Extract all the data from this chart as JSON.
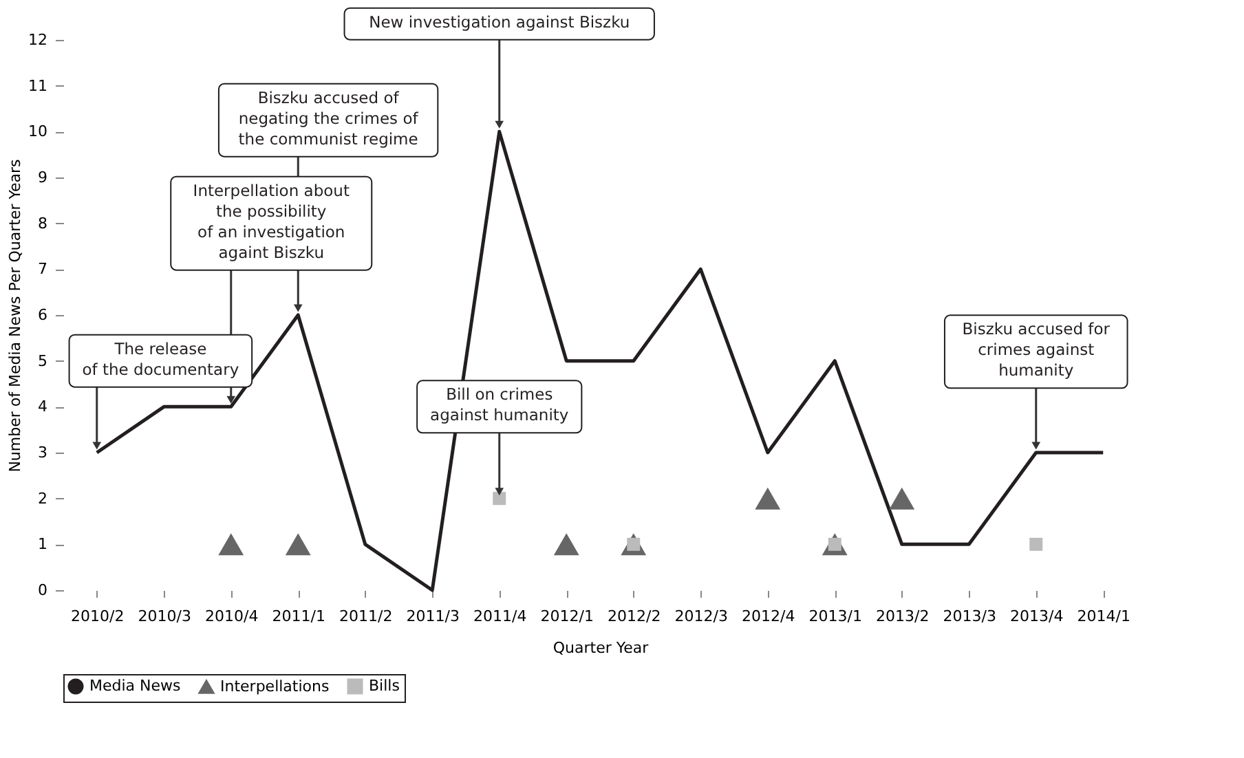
{
  "chart_data": {
    "type": "line",
    "xlabel": "Quarter Year",
    "ylabel": "Number of Media News Per Quarter Years",
    "categories": [
      "2010/2",
      "2010/3",
      "2010/4",
      "2011/1",
      "2011/2",
      "2011/3",
      "2011/4",
      "2012/1",
      "2012/2",
      "2012/3",
      "2012/4",
      "2013/1",
      "2013/2",
      "2013/3",
      "2013/4",
      "2014/1"
    ],
    "series": [
      {
        "name": "Media News",
        "type": "line",
        "color": "#231f20",
        "marker": "none",
        "line_style": "solid",
        "values": [
          3,
          4,
          4,
          6,
          1,
          0,
          10,
          5,
          5,
          7,
          3,
          5,
          1,
          1,
          3,
          3
        ]
      },
      {
        "name": "Interpellations",
        "type": "scatter",
        "color": "#666666",
        "marker": "triangle",
        "values": [
          null,
          null,
          1,
          1,
          null,
          null,
          null,
          1,
          1,
          null,
          2,
          1,
          2,
          null,
          null,
          null
        ]
      },
      {
        "name": "Bills",
        "type": "scatter",
        "color": "#bbbbbb",
        "marker": "square",
        "values": [
          null,
          null,
          null,
          null,
          null,
          null,
          2,
          null,
          1,
          null,
          null,
          1,
          null,
          null,
          1,
          null
        ]
      }
    ],
    "ylim": [
      0,
      12
    ],
    "yticks": [
      0,
      1,
      2,
      3,
      4,
      5,
      6,
      7,
      8,
      9,
      10,
      11,
      12
    ],
    "grid": false,
    "legend": "bottom",
    "annotations": [
      {
        "text": "The release\nof the documentary",
        "x": "2010/2",
        "y": 3
      },
      {
        "text": "Interpellation about\nthe possibility\nof an investigation\nagaint Biszku",
        "x": "2010/4",
        "y": 4
      },
      {
        "text": "Biszku accused of\nnegating the crimes of\nthe communist regime",
        "x": "2011/1",
        "y": 6
      },
      {
        "text": "New investigation against Biszku",
        "x": "2011/4",
        "y": 10
      },
      {
        "text": "Bill on crimes\nagainst humanity",
        "x": "2011/4",
        "y": 2
      },
      {
        "text": "Biszku accused for\ncrimes against\nhumanity",
        "x": "2013/4",
        "y": 3
      }
    ]
  }
}
